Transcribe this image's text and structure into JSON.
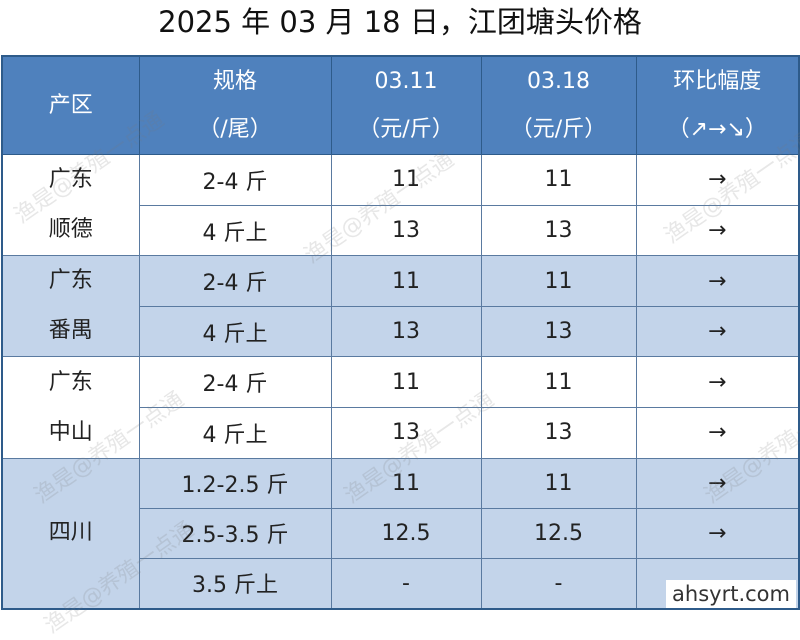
{
  "title": "2025 年 03 月 18 日，江团塘头价格",
  "table": {
    "header": [
      [
        "产区"
      ],
      [
        "规格",
        "（/尾）"
      ],
      [
        "03.11",
        "（元/斤）"
      ],
      [
        "03.18",
        "（元/斤）"
      ],
      [
        "环比幅度",
        "（↗→↘）"
      ]
    ],
    "groups": [
      {
        "region": [
          "广东",
          "顺德"
        ],
        "rows": [
          [
            "2-4 斤",
            "11",
            "11",
            "→"
          ],
          [
            "4 斤上",
            "13",
            "13",
            "→"
          ]
        ]
      },
      {
        "region": [
          "广东",
          "番禺"
        ],
        "rows": [
          [
            "2-4 斤",
            "11",
            "11",
            "→"
          ],
          [
            "4 斤上",
            "13",
            "13",
            "→"
          ]
        ]
      },
      {
        "region": [
          "广东",
          "中山"
        ],
        "rows": [
          [
            "2-4 斤",
            "11",
            "11",
            "→"
          ],
          [
            "4 斤上",
            "13",
            "13",
            "→"
          ]
        ]
      },
      {
        "region": [
          "四川"
        ],
        "rows": [
          [
            "1.2-2.5 斤",
            "11",
            "11",
            "→"
          ],
          [
            "2.5-3.5 斤",
            "12.5",
            "12.5",
            "→"
          ],
          [
            "3.5 斤上",
            "-",
            "-",
            ""
          ]
        ]
      }
    ]
  },
  "watermarks": [
    "渔是@养殖一点通",
    "ahsyrt.com"
  ]
}
